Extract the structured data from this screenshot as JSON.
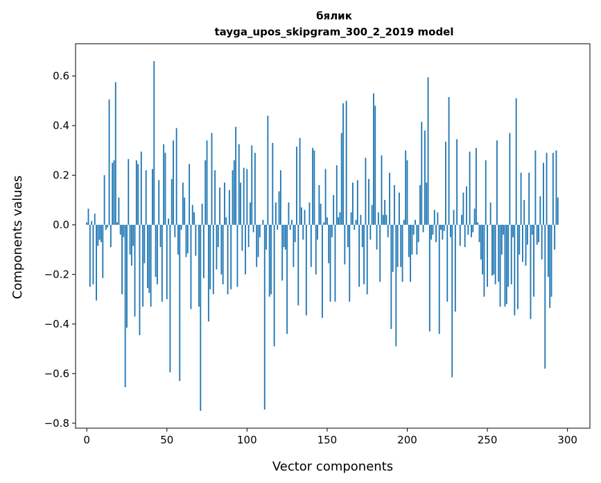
{
  "chart_data": {
    "type": "bar",
    "title": "бялик",
    "subtitle": "tayga_upos_skipgram_300_2_2019 model",
    "xlabel": "Vector components",
    "ylabel": "Components values",
    "xlim": [
      -7,
      314
    ],
    "ylim": [
      -0.82,
      0.73
    ],
    "grid": false,
    "bar_color": "#1f77b4",
    "xticks": [
      0,
      50,
      100,
      150,
      200,
      250,
      300
    ],
    "xtick_labels": [
      "0",
      "50",
      "100",
      "150",
      "200",
      "250",
      "300"
    ],
    "yticks": [
      -0.8,
      -0.6,
      -0.4,
      -0.2,
      0.0,
      0.2,
      0.4,
      0.6
    ],
    "ytick_labels": [
      "−0.8",
      "−0.6",
      "−0.4",
      "−0.2",
      "0.0",
      "0.2",
      "0.4",
      "0.6"
    ],
    "values": [
      0.01,
      0.065,
      -0.25,
      0.015,
      -0.24,
      0.045,
      -0.305,
      -0.085,
      -0.06,
      -0.07,
      -0.215,
      0.2,
      -0.02,
      -0.01,
      0.505,
      -0.09,
      0.25,
      0.26,
      0.575,
      0.01,
      0.11,
      -0.04,
      -0.28,
      -0.05,
      -0.655,
      -0.415,
      0.265,
      -0.12,
      -0.165,
      -0.085,
      -0.37,
      0.26,
      0.245,
      -0.445,
      0.295,
      -0.33,
      -0.155,
      0.22,
      -0.255,
      -0.275,
      -0.33,
      0.225,
      0.66,
      -0.21,
      -0.24,
      0.18,
      -0.09,
      -0.31,
      0.325,
      0.29,
      -0.3,
      0.025,
      -0.595,
      0.185,
      0.34,
      -0.05,
      0.39,
      -0.12,
      -0.63,
      -0.02,
      0.17,
      0.11,
      -0.13,
      -0.115,
      0.245,
      -0.34,
      0.08,
      0.05,
      -0.125,
      0.0,
      -0.33,
      -0.75,
      0.085,
      -0.215,
      0.26,
      0.34,
      -0.39,
      -0.26,
      0.37,
      -0.28,
      0.22,
      -0.18,
      -0.09,
      0.15,
      -0.2,
      -0.24,
      0.17,
      0.03,
      -0.28,
      0.14,
      -0.26,
      0.22,
      0.26,
      0.395,
      -0.25,
      0.325,
      0.17,
      -0.105,
      0.23,
      -0.2,
      0.225,
      -0.09,
      0.09,
      0.32,
      -0.03,
      0.29,
      -0.17,
      -0.13,
      -0.05,
      0.0,
      0.02,
      -0.745,
      -0.1,
      0.44,
      -0.29,
      -0.28,
      0.33,
      -0.49,
      0.09,
      -0.02,
      0.135,
      0.22,
      -0.225,
      -0.09,
      -0.1,
      -0.44,
      0.09,
      -0.02,
      0.02,
      -0.17,
      -0.07,
      0.315,
      -0.325,
      0.35,
      0.07,
      -0.06,
      0.06,
      -0.365,
      0.0,
      0.09,
      -0.17,
      0.31,
      0.3,
      -0.2,
      -0.06,
      0.16,
      0.085,
      -0.375,
      0.01,
      0.225,
      0.03,
      -0.155,
      -0.31,
      -0.05,
      0.12,
      -0.31,
      0.24,
      0.03,
      0.05,
      0.37,
      0.49,
      -0.16,
      0.5,
      -0.09,
      -0.31,
      0.05,
      0.17,
      -0.02,
      0.02,
      0.18,
      -0.25,
      0.04,
      -0.09,
      -0.24,
      0.27,
      -0.28,
      0.185,
      -0.06,
      0.08,
      0.53,
      0.48,
      -0.1,
      0.05,
      -0.23,
      0.28,
      0.04,
      0.1,
      0.04,
      -0.05,
      0.21,
      -0.42,
      -0.19,
      0.16,
      -0.49,
      -0.17,
      0.13,
      -0.17,
      -0.23,
      0.02,
      0.3,
      0.26,
      -0.13,
      -0.23,
      -0.12,
      -0.04,
      0.02,
      -0.12,
      -0.07,
      0.16,
      0.415,
      -0.03,
      0.38,
      0.17,
      0.595,
      -0.43,
      -0.06,
      -0.04,
      0.06,
      -0.07,
      0.05,
      -0.44,
      -0.02,
      -0.06,
      -0.025,
      0.335,
      -0.31,
      0.515,
      -0.05,
      -0.615,
      0.06,
      -0.35,
      0.345,
      0.0,
      -0.085,
      0.04,
      0.13,
      -0.09,
      0.155,
      -0.04,
      0.295,
      -0.05,
      -0.03,
      0.065,
      0.31,
      0.01,
      -0.07,
      -0.14,
      -0.2,
      -0.29,
      0.26,
      -0.25,
      0.0,
      0.09,
      -0.205,
      -0.2,
      -0.24,
      0.34,
      -0.23,
      -0.33,
      -0.12,
      -0.04,
      -0.33,
      -0.32,
      -0.25,
      0.37,
      -0.24,
      -0.05,
      -0.365,
      0.51,
      -0.34,
      -0.12,
      0.21,
      -0.15,
      0.1,
      -0.165,
      -0.08,
      0.21,
      -0.38,
      -0.04,
      -0.29,
      0.3,
      -0.08,
      -0.07,
      0.115,
      -0.14,
      0.25,
      -0.58,
      0.29,
      -0.21,
      -0.335,
      -0.29,
      0.29,
      -0.1,
      0.3,
      0.11
    ]
  }
}
